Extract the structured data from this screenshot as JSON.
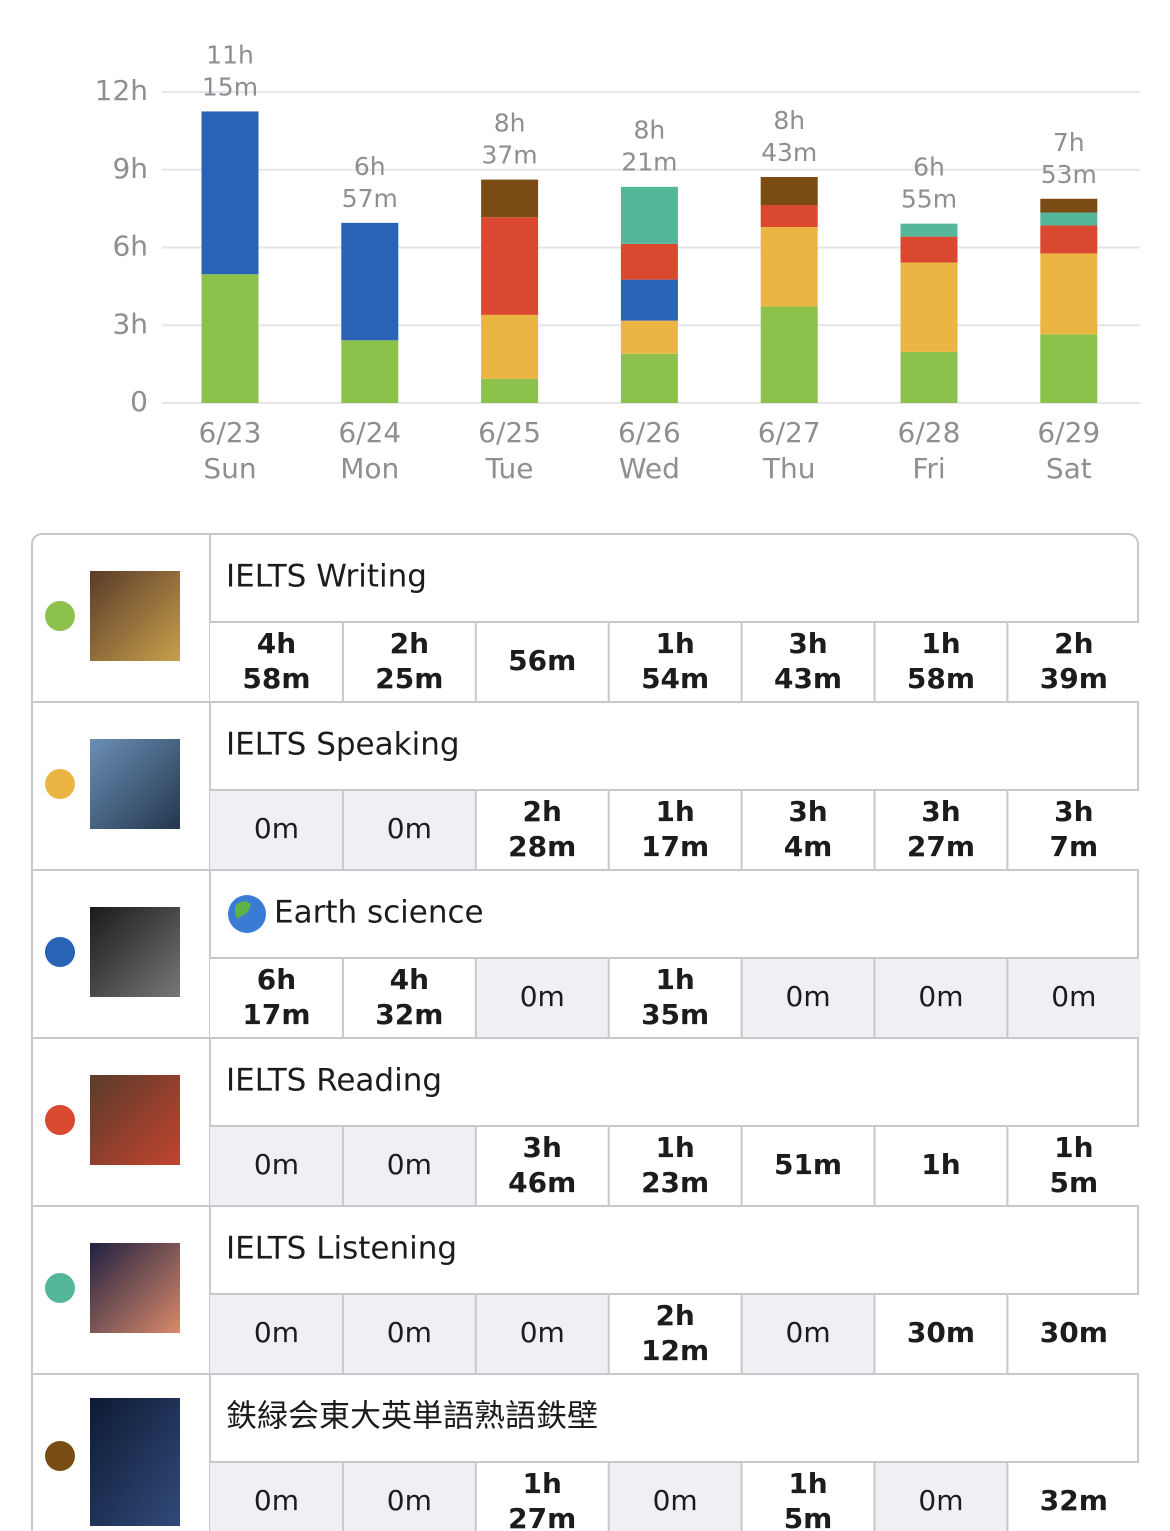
{
  "chart_data": {
    "type": "stacked_bar",
    "categories": [
      "6/23",
      "6/24",
      "6/25",
      "6/26",
      "6/27",
      "6/28",
      "6/29"
    ],
    "weekdays": [
      "Sun",
      "Mon",
      "Tue",
      "Wed",
      "Thu",
      "Fri",
      "Sat"
    ],
    "ylim": [
      0,
      12
    ],
    "yticks": [
      0,
      {
        "value": 3,
        "label": "3h"
      },
      {
        "value": 6,
        "label": "6h"
      },
      {
        "value": 9,
        "label": "9h"
      },
      {
        "value": 12,
        "label": "12h"
      }
    ],
    "grid": true,
    "totals": {
      "values": [
        11.25,
        6.95,
        8.62,
        8.35,
        8.72,
        6.92,
        7.88
      ],
      "value_labels": [
        [
          "11h",
          "15m"
        ],
        [
          "6h",
          "57m"
        ],
        [
          "8h",
          "37m"
        ],
        [
          "8h",
          "21m"
        ],
        [
          "8h",
          "43m"
        ],
        [
          "6h",
          "55m"
        ],
        [
          "7h",
          "53m"
        ]
      ]
    },
    "series": [
      {
        "name": "IELTS Writing",
        "color": "#8cc24b",
        "values": [
          4.97,
          2.42,
          0.93,
          1.9,
          3.72,
          1.97,
          2.65
        ],
        "value_labels": [
          [
            "4h",
            "58m"
          ],
          [
            "2h",
            "25m"
          ],
          [
            "56m"
          ],
          [
            "1h",
            "54m"
          ],
          [
            "3h",
            "43m"
          ],
          [
            "1h",
            "58m"
          ],
          [
            "2h",
            "39m"
          ]
        ]
      },
      {
        "name": "IELTS Speaking",
        "color": "#ebb544",
        "values": [
          0,
          0,
          2.47,
          1.28,
          3.07,
          3.45,
          3.12
        ],
        "value_labels": [
          [
            "0m"
          ],
          [
            "0m"
          ],
          [
            "2h",
            "28m"
          ],
          [
            "1h",
            "17m"
          ],
          [
            "3h",
            "4m"
          ],
          [
            "3h",
            "27m"
          ],
          [
            "3h",
            "7m"
          ]
        ]
      },
      {
        "name": "Earth science",
        "color": "#2a62b6",
        "values": [
          6.28,
          4.53,
          0,
          1.58,
          0,
          0,
          0
        ],
        "value_labels": [
          [
            "6h",
            "17m"
          ],
          [
            "4h",
            "32m"
          ],
          [
            "0m"
          ],
          [
            "1h",
            "35m"
          ],
          [
            "0m"
          ],
          [
            "0m"
          ],
          [
            "0m"
          ]
        ]
      },
      {
        "name": "IELTS Reading",
        "color": "#d9482f",
        "values": [
          0,
          0,
          3.77,
          1.38,
          0.85,
          1,
          1.08
        ],
        "value_labels": [
          [
            "0m"
          ],
          [
            "0m"
          ],
          [
            "3h",
            "46m"
          ],
          [
            "1h",
            "23m"
          ],
          [
            "51m"
          ],
          [
            "1h"
          ],
          [
            "1h",
            "5m"
          ]
        ]
      },
      {
        "name": "IELTS Listening",
        "color": "#55b79a",
        "values": [
          0,
          0,
          0,
          2.2,
          0,
          0.5,
          0.5
        ],
        "value_labels": [
          [
            "0m"
          ],
          [
            "0m"
          ],
          [
            "0m"
          ],
          [
            "2h",
            "12m"
          ],
          [
            "0m"
          ],
          [
            "30m"
          ],
          [
            "30m"
          ]
        ]
      },
      {
        "name": "鉄緑会東大英単語熟語鉄壁",
        "color": "#7a4b14",
        "values": [
          0,
          0,
          1.45,
          0,
          1.08,
          0,
          0.53
        ],
        "value_labels": [
          [
            "0m"
          ],
          [
            "0m"
          ],
          [
            "1h",
            "27m"
          ],
          [
            "0m"
          ],
          [
            "1h",
            "5m"
          ],
          [
            "0m"
          ],
          [
            "32m"
          ]
        ]
      }
    ]
  }
}
